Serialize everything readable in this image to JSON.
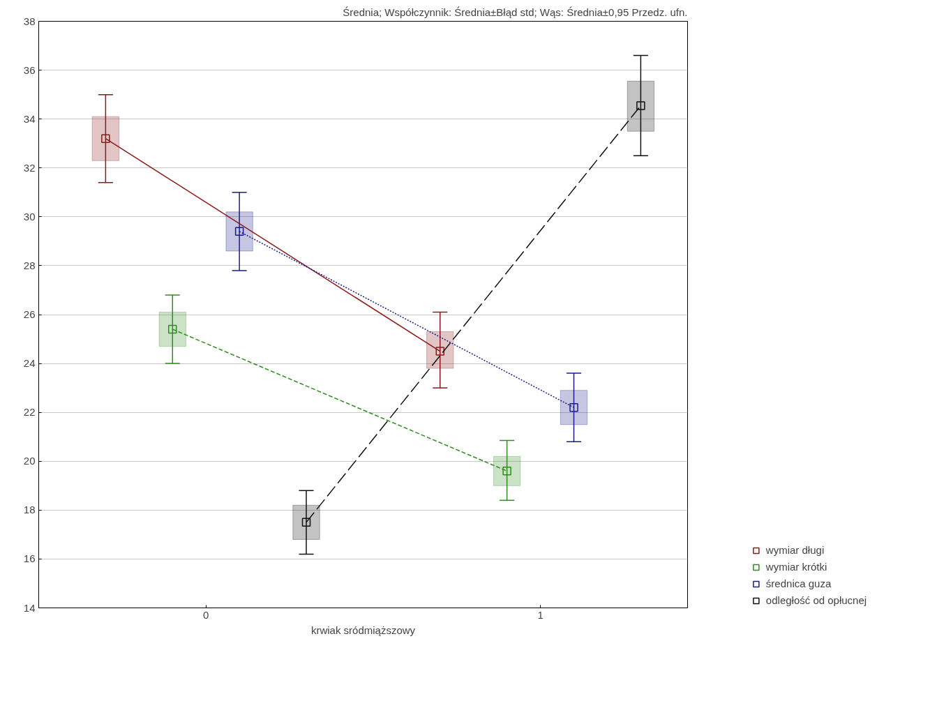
{
  "chart_data": {
    "type": "box",
    "title": "Średnia; Współczynnik: Średnia±Błąd std; Wąs: Średnia±0,95 Przedz. ufn.",
    "xlabel": "krwiak sródmiąższowy",
    "xlim": [
      -0.5,
      1.44
    ],
    "xticks": [
      0,
      1
    ],
    "ylim": [
      14,
      38
    ],
    "yticks": [
      14,
      16,
      18,
      20,
      22,
      24,
      26,
      28,
      30,
      32,
      34,
      36,
      38
    ],
    "grid": "y",
    "legend": "bottom right",
    "marker": "square",
    "series": [
      {
        "name": "wymiar długi",
        "color": "#8b1a1a",
        "x": [
          -0.3,
          0.7
        ],
        "boxes": [
          {
            "low": 31.4,
            "q1": 32.3,
            "median": 33.2,
            "q3": 34.1,
            "high": 35.0
          },
          {
            "low": 23.0,
            "q1": 23.8,
            "median": 24.5,
            "q3": 25.3,
            "high": 26.1
          }
        ]
      },
      {
        "name": "wymiar krótki",
        "color": "#2e8b1e",
        "x": [
          -0.1,
          0.9
        ],
        "boxes": [
          {
            "low": 24.0,
            "q1": 24.7,
            "median": 25.4,
            "q3": 26.1,
            "high": 26.8
          },
          {
            "low": 18.4,
            "q1": 19.0,
            "median": 19.6,
            "q3": 20.2,
            "high": 20.85
          }
        ]
      },
      {
        "name": "średnica guza",
        "color": "#1c1c8c",
        "x": [
          0.1,
          1.1
        ],
        "boxes": [
          {
            "low": 27.8,
            "q1": 28.6,
            "median": 29.4,
            "q3": 30.2,
            "high": 31.0
          },
          {
            "low": 20.8,
            "q1": 21.5,
            "median": 22.2,
            "q3": 22.9,
            "high": 23.6
          }
        ]
      },
      {
        "name": "odległość od opłucnej",
        "color": "#111111",
        "x": [
          0.3,
          1.3
        ],
        "boxes": [
          {
            "low": 16.2,
            "q1": 16.8,
            "median": 17.5,
            "q3": 18.2,
            "high": 18.8
          },
          {
            "low": 32.5,
            "q1": 33.5,
            "median": 34.55,
            "q3": 35.55,
            "high": 36.6
          }
        ]
      },
      {
        "type": "line",
        "marker": "none",
        "color": "#8b1a1a",
        "line_style": "solid",
        "x": [
          -0.3,
          0.7
        ],
        "values": [
          33.2,
          24.5
        ]
      },
      {
        "type": "line",
        "marker": "none",
        "color": "#2e8b1e",
        "line_style": "dashed",
        "x": [
          -0.1,
          0.9
        ],
        "values": [
          25.4,
          19.6
        ]
      },
      {
        "type": "line",
        "marker": "none",
        "color": "#1c1c8c",
        "line_style": "dotted",
        "x": [
          0.1,
          1.1
        ],
        "values": [
          29.4,
          22.2
        ]
      },
      {
        "type": "line",
        "marker": "none",
        "color": "#111111",
        "line_style": "longdash",
        "x": [
          0.3,
          1.3
        ],
        "values": [
          17.5,
          34.55
        ]
      }
    ]
  }
}
